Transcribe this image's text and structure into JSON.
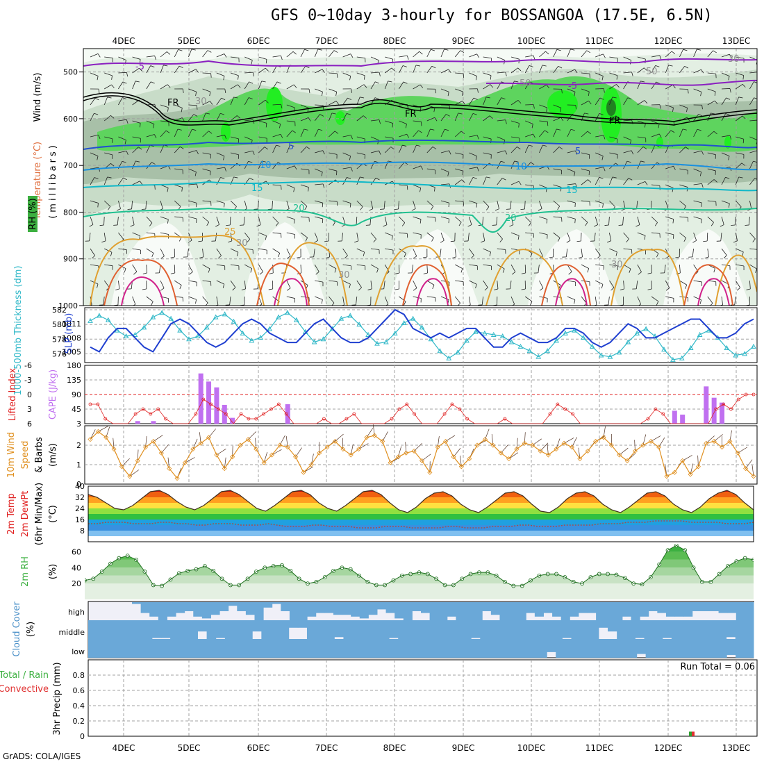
{
  "header": {
    "title": "GFS 0~10day 3-hourly for BOSSANGOA (17.5E, 6.5N)",
    "credit": "GrADS: COLA/IGES"
  },
  "dates": [
    "4DEC",
    "5DEC",
    "6DEC",
    "7DEC",
    "8DEC",
    "9DEC",
    "10DEC",
    "11DEC",
    "12DEC",
    "13DEC"
  ],
  "colors": {
    "grid": "#a0a0a0",
    "slp": "#1f3fd0",
    "thickness": "#30b8c8",
    "cape": "#c070f0",
    "lifted": "#e02020",
    "wind10m": "#e09020",
    "rh_fill": "#3cb040",
    "cloud": "#6aa8d8",
    "cloud_clear": "#f0f0f8",
    "precip_total": "#30a030",
    "precip_conv": "#e03030"
  },
  "panels": {
    "upper": {
      "ylabels": [
        "Wind (m/s)",
        "Temperature (°C)",
        "(millibars)",
        "RH (%)"
      ],
      "yticks": [
        500,
        600,
        700,
        800,
        900,
        1000
      ],
      "contour_labels": [
        "-5",
        "FR",
        "5",
        "10",
        "15",
        "20",
        "25",
        "30",
        "50"
      ]
    },
    "slp": {
      "ylabel_left": "1000-500mb Thickness (dm)",
      "ylabel_right": "SLP (mb)",
      "left_ticks": [
        576,
        578,
        580,
        582
      ],
      "right_ticks": [
        1005,
        1008,
        1011
      ]
    },
    "cape": {
      "ylabel_left": "Lifted Index",
      "ylabel_right": "CAPE (J/kg)",
      "left_ticks": [
        "6",
        "3",
        "0",
        "-3",
        "-6"
      ],
      "right_ticks": [
        3,
        45,
        90,
        135,
        180
      ]
    },
    "wind": {
      "ylabel": [
        "10m Wind",
        "Speed",
        "& Barbs",
        "(m/s)"
      ],
      "yticks": [
        0,
        1,
        2
      ]
    },
    "temp": {
      "ylabel": [
        "2m Temp",
        "2m DewPt",
        "(6hr Min/Max)",
        "(°C)"
      ],
      "yticks": [
        8,
        16,
        24,
        32,
        40
      ]
    },
    "rh": {
      "ylabel": [
        "2m RH",
        "(%)"
      ],
      "yticks": [
        20,
        40,
        60
      ]
    },
    "cloud": {
      "ylabel": [
        "Cloud Cover",
        "(%)"
      ],
      "levels": [
        "high",
        "middle",
        "low"
      ]
    },
    "precip": {
      "ylabel": [
        "Total / Rain",
        "Convective",
        "3hr Precip (mm)"
      ],
      "yticks": [
        0,
        0.2,
        0.4,
        0.6,
        0.8
      ],
      "run_total": "Run Total = 0.06"
    }
  },
  "chart_data": [
    {
      "type": "line",
      "title": "1000-500mb Thickness (dm) and SLP (mb)",
      "series": [
        {
          "name": "SLP (mb)",
          "values": [
            1006,
            1005,
            1008,
            1010,
            1010,
            1008,
            1006,
            1005,
            1008,
            1011,
            1012,
            1011,
            1009,
            1007,
            1006,
            1007,
            1009,
            1011,
            1012,
            1011,
            1009,
            1008,
            1007,
            1007,
            1009,
            1011,
            1012,
            1010,
            1008,
            1007,
            1007,
            1008,
            1010,
            1012,
            1014,
            1013,
            1010,
            1009,
            1008,
            1009,
            1008,
            1009,
            1010,
            1010,
            1008,
            1006,
            1006,
            1008,
            1009,
            1008,
            1007,
            1007,
            1008,
            1010,
            1010,
            1009,
            1007,
            1006,
            1007,
            1009,
            1011,
            1010,
            1008,
            1008,
            1009,
            1010,
            1011,
            1012,
            1012,
            1010,
            1008,
            1008,
            1009,
            1011,
            1012
          ]
        },
        {
          "name": "1000-500mb Thickness (dm)",
          "values": [
            580.5,
            581.2,
            580.6,
            579.2,
            578.4,
            578.6,
            579.6,
            581,
            581.6,
            580.8,
            579.2,
            578,
            578.4,
            579.6,
            581,
            581.4,
            580.4,
            578.8,
            577.8,
            578.2,
            579.4,
            581,
            581.6,
            580.6,
            579,
            577.6,
            578,
            579.4,
            580.8,
            581.2,
            580,
            578.6,
            577.4,
            577.6,
            578.8,
            580.2,
            580.8,
            579.6,
            578,
            576.4,
            575.4,
            576.2,
            577.8,
            579,
            578.8,
            578.6,
            578.4,
            577.6,
            577,
            576.4,
            575.6,
            576.4,
            577.8,
            578.8,
            579.2,
            578.2,
            577,
            575.8,
            575.6,
            576.2,
            577.6,
            578.8,
            579.4,
            578.4,
            576.6,
            575.2,
            575.4,
            576.8,
            578.6,
            579.2,
            578.2,
            576.8,
            575.8,
            576,
            577
          ]
        }
      ],
      "ylim_left": [
        575,
        582
      ],
      "ylim_right": [
        1003,
        1014
      ]
    },
    {
      "type": "bar",
      "title": "CAPE (J/kg) and Lifted Index",
      "series": [
        {
          "name": "CAPE (J/kg)",
          "values": [
            0,
            0,
            0,
            0,
            0,
            0,
            8,
            0,
            8,
            0,
            0,
            0,
            0,
            0,
            155,
            130,
            112,
            58,
            18,
            0,
            0,
            0,
            0,
            0,
            0,
            60,
            0,
            0,
            0,
            0,
            0,
            0,
            0,
            0,
            0,
            0,
            0,
            0,
            0,
            0,
            0,
            0,
            0,
            0,
            0,
            0,
            0,
            0,
            0,
            0,
            0,
            0,
            0,
            0,
            0,
            0,
            0,
            0,
            0,
            0,
            0,
            0,
            0,
            0,
            0,
            0,
            0,
            0,
            0,
            0,
            0,
            0,
            0,
            0,
            40,
            28,
            0,
            0,
            115,
            80,
            65,
            0,
            0,
            0,
            0
          ]
        },
        {
          "name": "Lifted Index",
          "values": [
            2,
            2,
            5,
            6,
            6,
            6,
            4,
            3,
            4,
            3,
            5,
            6,
            6,
            6,
            4,
            1,
            2,
            3,
            4,
            6,
            4,
            5,
            5,
            4,
            3,
            2,
            4,
            6,
            6,
            6,
            6,
            5,
            6,
            6,
            5,
            4,
            6,
            6,
            6,
            6,
            5,
            3,
            2,
            4,
            6,
            6,
            6,
            4,
            2,
            3,
            5,
            6,
            6,
            6,
            6,
            5,
            6,
            6,
            6,
            6,
            6,
            4,
            2,
            3,
            4,
            6,
            6,
            6,
            6,
            6,
            6,
            6,
            6,
            6,
            5,
            3,
            4,
            6,
            6,
            6,
            6,
            6,
            6,
            3,
            2,
            3,
            1,
            0,
            0
          ]
        }
      ],
      "ylim_right": [
        3,
        180
      ],
      "ylim_left": [
        6,
        -6
      ]
    },
    {
      "type": "line",
      "title": "10m Wind Speed (m/s)",
      "series": [
        {
          "name": "10m Wind Speed",
          "values": [
            2.3,
            2.7,
            2.4,
            1.8,
            0.9,
            0.4,
            1.2,
            1.9,
            2.2,
            1.6,
            0.8,
            0.3,
            1.1,
            1.8,
            2.1,
            2.4,
            1.5,
            0.8,
            1.4,
            2.0,
            2.3,
            1.8,
            1.1,
            1.5,
            2.0,
            1.9,
            1.4,
            0.6,
            1.0,
            1.6,
            1.9,
            2.2,
            1.8,
            1.5,
            1.8,
            2.4,
            2.5,
            2.2,
            1.1,
            1.4,
            1.6,
            1.7,
            1.2,
            0.6,
            1.9,
            2.2,
            1.4,
            0.9,
            1.3,
            2.0,
            2.3,
            2.0,
            1.6,
            1.3,
            1.8,
            2.1,
            2.0,
            1.7,
            1.5,
            1.8,
            2.1,
            1.9,
            1.3,
            1.7,
            2.2,
            2.4,
            2.0,
            1.5,
            1.2,
            1.7,
            2.0,
            2.2,
            1.9,
            0.4,
            0.6,
            1.2,
            0.5,
            0.9,
            2.1,
            2.2,
            1.9,
            2.2,
            1.6,
            0.8,
            0.4
          ]
        }
      ],
      "ylim": [
        0,
        3
      ]
    },
    {
      "type": "area",
      "title": "2m Temp / 2m DewPt (°C)",
      "series": [
        {
          "name": "2m Temp",
          "values": [
            34,
            32,
            28,
            24,
            23,
            26,
            31,
            36,
            37,
            34,
            29,
            25,
            23,
            26,
            31,
            36,
            37,
            34,
            29,
            24,
            22,
            26,
            31,
            36,
            37,
            34,
            28,
            24,
            22,
            26,
            31,
            36,
            37,
            34,
            28,
            23,
            21,
            25,
            31,
            35,
            36,
            33,
            27,
            23,
            21,
            25,
            30,
            35,
            36,
            33,
            27,
            22,
            21,
            25,
            31,
            35,
            36,
            33,
            27,
            23,
            21,
            25,
            30,
            35,
            36,
            33,
            27,
            23,
            21,
            25,
            31,
            35,
            37,
            34,
            28,
            23
          ]
        },
        {
          "name": "2m DewPt",
          "values": [
            13,
            13,
            14,
            14,
            14,
            13,
            13,
            13,
            14,
            14,
            13,
            13,
            12,
            12,
            13,
            13,
            13,
            12,
            12,
            12,
            13,
            12,
            11,
            11,
            11,
            12,
            12,
            11,
            11,
            11,
            10,
            10,
            10,
            11,
            11,
            11,
            10,
            10,
            10,
            10,
            11,
            11,
            10,
            10,
            10,
            11,
            11,
            11,
            12,
            12,
            11,
            11,
            11,
            12,
            12,
            12,
            12,
            13,
            13,
            13,
            14,
            14,
            14,
            15,
            15,
            15,
            15,
            14,
            14,
            14,
            14,
            13,
            13,
            13,
            14
          ]
        }
      ],
      "ylim": [
        0,
        40
      ]
    },
    {
      "type": "area",
      "title": "2m RH (%)",
      "series": [
        {
          "name": "2m RH",
          "values": [
            24,
            26,
            35,
            45,
            52,
            55,
            50,
            35,
            18,
            17,
            25,
            33,
            36,
            38,
            42,
            36,
            26,
            18,
            18,
            26,
            35,
            40,
            42,
            43,
            36,
            26,
            20,
            22,
            28,
            36,
            40,
            38,
            30,
            22,
            18,
            18,
            24,
            30,
            32,
            34,
            32,
            26,
            18,
            18,
            26,
            32,
            34,
            34,
            30,
            22,
            17,
            17,
            24,
            30,
            32,
            32,
            28,
            22,
            20,
            28,
            32,
            32,
            31,
            27,
            20,
            19,
            28,
            44,
            62,
            68,
            62,
            40,
            22,
            22,
            32,
            42,
            48,
            52,
            50
          ]
        }
      ],
      "ylim": [
        0,
        70
      ]
    },
    {
      "type": "table",
      "title": "Cloud Cover (%)",
      "series": [
        {
          "name": "high",
          "values": [
            0,
            0,
            0,
            0,
            0,
            10,
            60,
            80,
            100,
            80,
            60,
            50,
            80,
            90,
            70,
            50,
            20,
            50,
            70,
            100,
            30,
            10,
            50,
            100,
            100,
            80,
            60,
            60,
            70,
            70,
            80,
            90,
            70,
            40,
            60,
            90,
            100,
            50,
            60,
            100,
            100,
            80,
            100,
            100,
            100,
            50,
            70,
            100,
            100,
            100,
            60,
            80,
            60,
            80,
            100,
            80,
            60,
            60,
            100,
            100,
            100,
            80,
            100,
            80,
            50,
            60,
            80,
            80,
            80,
            50,
            50,
            50,
            60,
            60,
            100,
            100
          ]
        },
        {
          "name": "middle",
          "values": [
            100,
            100,
            100,
            100,
            100,
            100,
            100,
            95,
            95,
            100,
            100,
            100,
            60,
            100,
            95,
            100,
            100,
            100,
            60,
            100,
            100,
            100,
            40,
            40,
            100,
            100,
            100,
            90,
            100,
            100,
            100,
            100,
            100,
            95,
            100,
            100,
            100,
            100,
            100,
            100,
            100,
            100,
            95,
            100,
            100,
            100,
            100,
            100,
            100,
            100,
            100,
            100,
            95,
            100,
            100,
            100,
            40,
            60,
            100,
            100,
            95,
            100,
            100,
            95,
            100,
            100,
            100,
            100,
            100,
            100,
            90,
            100,
            100
          ]
        },
        {
          "name": "low",
          "values": [
            100,
            100,
            100,
            100,
            100,
            100,
            100,
            100,
            100,
            100,
            100,
            100,
            100,
            100,
            100,
            100,
            100,
            100,
            100,
            100,
            100,
            100,
            100,
            100,
            100,
            100,
            100,
            100,
            100,
            100,
            100,
            100,
            100,
            100,
            100,
            100,
            100,
            100,
            100,
            100,
            100,
            100,
            100,
            100,
            100,
            100,
            100,
            100,
            100,
            100,
            100,
            70,
            100,
            100,
            100,
            100,
            100,
            100,
            100,
            100,
            100,
            80,
            100,
            100,
            100,
            100,
            100,
            100,
            100,
            100,
            100,
            85,
            100,
            100
          ]
        }
      ],
      "ylim": [
        0,
        100
      ]
    },
    {
      "type": "bar",
      "title": "3hr Precip (mm)",
      "categories": [
        "12DEC"
      ],
      "series": [
        {
          "name": "Total / Rain",
          "values": [
            0.06
          ]
        },
        {
          "name": "Convective",
          "values": [
            0.06
          ]
        }
      ],
      "ylim": [
        0,
        1
      ]
    }
  ]
}
